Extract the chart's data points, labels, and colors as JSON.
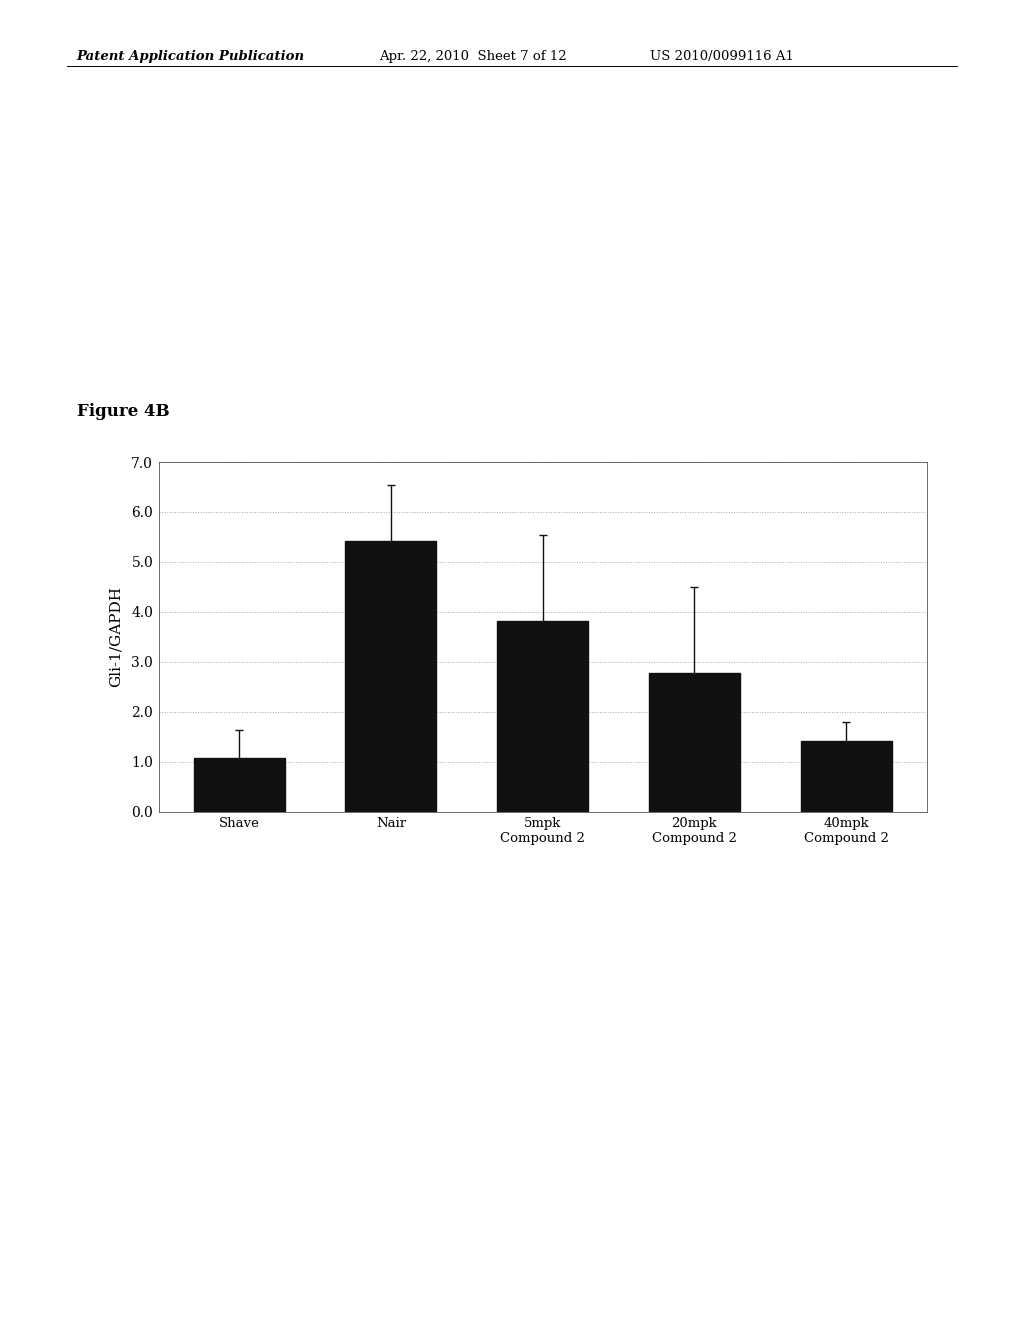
{
  "categories": [
    "Shave",
    "Nair",
    "5mpk\nCompound 2",
    "20mpk\nCompound 2",
    "40mpk\nCompound 2"
  ],
  "values": [
    1.08,
    5.42,
    3.82,
    2.78,
    1.42
  ],
  "errors": [
    0.55,
    1.12,
    1.72,
    1.72,
    0.38
  ],
  "bar_color": "#111111",
  "ylabel": "Gli-1/GAPDH",
  "ylim": [
    0.0,
    7.0
  ],
  "yticks": [
    0.0,
    1.0,
    2.0,
    3.0,
    4.0,
    5.0,
    6.0,
    7.0
  ],
  "figure_label": "Figure 4B",
  "header_left": "Patent Application Publication",
  "header_mid": "Apr. 22, 2010  Sheet 7 of 12",
  "header_right": "US 2010/0099116 A1",
  "background_color": "#ffffff",
  "grid_color": "#aaaaaa",
  "bar_width": 0.6,
  "figsize": [
    10.24,
    13.2
  ],
  "dpi": 100
}
